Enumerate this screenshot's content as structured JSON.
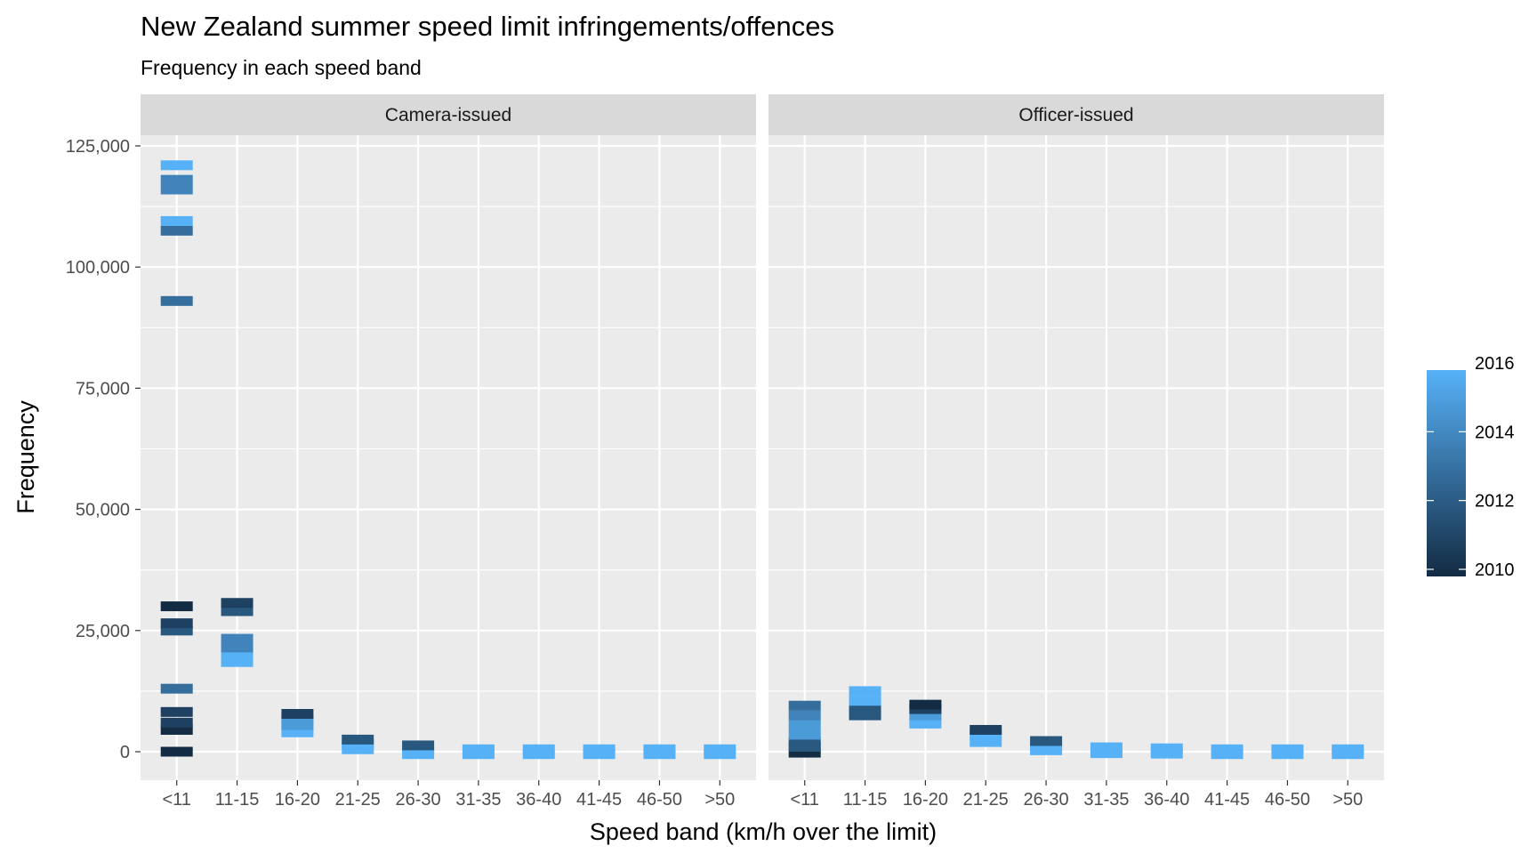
{
  "chart_data": {
    "type": "scatter",
    "title": "New Zealand summer speed limit infringements/offences",
    "subtitle": "Frequency in each speed band",
    "xlabel": "Speed band (km/h over the limit)",
    "ylabel": "Frequency",
    "categories": [
      "<11",
      "11-15",
      "16-20",
      "21-25",
      "26-30",
      "31-35",
      "36-40",
      "41-45",
      "46-50",
      ">50"
    ],
    "ylim": [
      -6000,
      131000
    ],
    "y_ticks": [
      0,
      25000,
      50000,
      75000,
      100000,
      125000
    ],
    "y_tick_labels": [
      "0",
      "25,000",
      "50,000",
      "75,000",
      "100,000",
      "125,000"
    ],
    "grid": true,
    "colors": {
      "low": "#132B43",
      "high": "#56B1F7",
      "panel": "#EBEBEB",
      "strip": "#D9D9D9",
      "grid": "#FFFFFF"
    },
    "legend": {
      "title": "",
      "placement": "right",
      "year_min": 2010,
      "year_max": 2016,
      "labels": [
        "2016",
        "2014",
        "2012",
        "2010"
      ],
      "label_years": [
        2016,
        2014,
        2012,
        2010
      ]
    },
    "facets": [
      {
        "name": "Camera-issued",
        "groups": [
          [
            {
              "year": 2010,
              "value": 0
            },
            {
              "year": 2010,
              "value": 4500
            },
            {
              "year": 2011,
              "value": 6000
            },
            {
              "year": 2011,
              "value": 8200
            },
            {
              "year": 2013,
              "value": 13000
            },
            {
              "year": 2012,
              "value": 25000
            },
            {
              "year": 2011,
              "value": 26500
            },
            {
              "year": 2010,
              "value": 30000
            },
            {
              "year": 2013,
              "value": 93000
            },
            {
              "year": 2013,
              "value": 107500
            },
            {
              "year": 2016,
              "value": 109500
            },
            {
              "year": 2014,
              "value": 116000
            },
            {
              "year": 2014,
              "value": 118000
            },
            {
              "year": 2016,
              "value": 121000
            }
          ],
          [
            {
              "year": 2016,
              "value": 18500
            },
            {
              "year": 2016,
              "value": 20000
            },
            {
              "year": 2014,
              "value": 21500
            },
            {
              "year": 2014,
              "value": 23300
            },
            {
              "year": 2012,
              "value": 29000
            },
            {
              "year": 2011,
              "value": 30700
            }
          ],
          [
            {
              "year": 2016,
              "value": 4000
            },
            {
              "year": 2015,
              "value": 5500
            },
            {
              "year": 2015,
              "value": 6500
            },
            {
              "year": 2011,
              "value": 7800
            }
          ],
          [
            {
              "year": 2016,
              "value": 500
            },
            {
              "year": 2016,
              "value": 1500
            },
            {
              "year": 2012,
              "value": 2500
            }
          ],
          [
            {
              "year": 2016,
              "value": -500
            },
            {
              "year": 2016,
              "value": 500
            },
            {
              "year": 2012,
              "value": 1300
            }
          ],
          [
            {
              "year": 2016,
              "value": -500
            },
            {
              "year": 2016,
              "value": 500
            }
          ],
          [
            {
              "year": 2016,
              "value": -500
            },
            {
              "year": 2016,
              "value": 500
            }
          ],
          [
            {
              "year": 2016,
              "value": -500
            },
            {
              "year": 2016,
              "value": 500
            }
          ],
          [
            {
              "year": 2016,
              "value": -500
            },
            {
              "year": 2016,
              "value": 500
            }
          ],
          [
            {
              "year": 2016,
              "value": -500
            },
            {
              "year": 2016,
              "value": 500
            }
          ]
        ]
      },
      {
        "name": "Officer-issued",
        "groups": [
          [
            {
              "year": 2010,
              "value": -200
            },
            {
              "year": 2012,
              "value": 1000
            },
            {
              "year": 2012,
              "value": 2000
            },
            {
              "year": 2015,
              "value": 3500
            },
            {
              "year": 2015,
              "value": 5500
            },
            {
              "year": 2014,
              "value": 7500
            },
            {
              "year": 2013,
              "value": 9500
            }
          ],
          [
            {
              "year": 2012,
              "value": 7500
            },
            {
              "year": 2012,
              "value": 9000
            },
            {
              "year": 2016,
              "value": 10500
            },
            {
              "year": 2016,
              "value": 12500
            }
          ],
          [
            {
              "year": 2016,
              "value": 5800
            },
            {
              "year": 2015,
              "value": 7500
            },
            {
              "year": 2011,
              "value": 8800
            },
            {
              "year": 2010,
              "value": 9700
            }
          ],
          [
            {
              "year": 2016,
              "value": 2000
            },
            {
              "year": 2016,
              "value": 3500
            },
            {
              "year": 2011,
              "value": 4500
            }
          ],
          [
            {
              "year": 2016,
              "value": 300
            },
            {
              "year": 2016,
              "value": 1300
            },
            {
              "year": 2012,
              "value": 2200
            }
          ],
          [
            {
              "year": 2016,
              "value": -300
            },
            {
              "year": 2016,
              "value": 900
            }
          ],
          [
            {
              "year": 2016,
              "value": -400
            },
            {
              "year": 2016,
              "value": 700
            }
          ],
          [
            {
              "year": 2016,
              "value": -500
            },
            {
              "year": 2016,
              "value": 500
            }
          ],
          [
            {
              "year": 2016,
              "value": -500
            },
            {
              "year": 2016,
              "value": 500
            }
          ],
          [
            {
              "year": 2016,
              "value": -500
            },
            {
              "year": 2016,
              "value": 500
            }
          ]
        ]
      }
    ]
  }
}
